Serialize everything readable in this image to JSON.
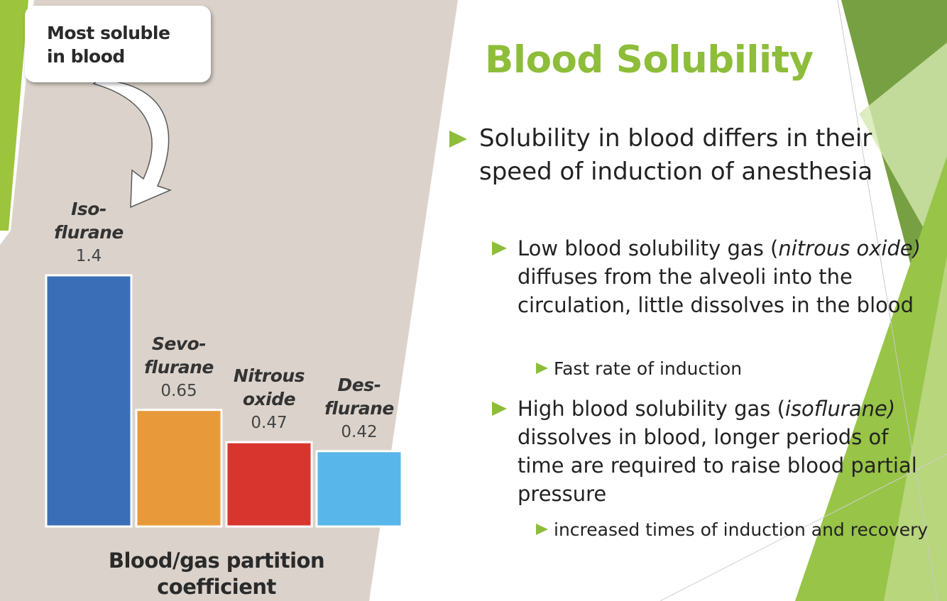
{
  "slide": {
    "title": "Blood Solubility",
    "bullets": [
      {
        "level": 1,
        "parts": [
          {
            "text": "Solubility in blood differs in their speed of induction of anesthesia"
          }
        ]
      },
      {
        "level": 2,
        "parts": [
          {
            "text": "Low blood solubility gas ("
          },
          {
            "text": "nitrous oxide)",
            "italic": true
          },
          {
            "text": " diffuses from the alveoli into the circulation, little dissolves in the blood"
          }
        ]
      },
      {
        "level": 3,
        "parts": [
          {
            "text": "Fast rate of induction"
          }
        ]
      },
      {
        "level": 2,
        "parts": [
          {
            "text": "High blood solubility gas ("
          },
          {
            "text": "isoflurane)",
            "italic": true
          },
          {
            "text": " dissolves in blood, longer periods of time are required to raise blood partial pressure"
          }
        ]
      },
      {
        "level": 3,
        "parts": [
          {
            "text": "increased times of induction and recovery"
          }
        ]
      }
    ]
  },
  "colors": {
    "accent": "#8ebd3a",
    "chart_background": "#dbd3cb",
    "bar_isoflurane": "#3a6fb8",
    "bar_sevoflurane": "#e8993a",
    "bar_nitrous_oxide": "#d9352f",
    "bar_desflurane": "#58b6ea"
  },
  "chart_data": {
    "type": "bar",
    "callout": "Most soluble\nin blood",
    "xlabel": "Blood/gas partition\ncoefficient",
    "ylim": [
      0,
      1.4
    ],
    "bars": [
      {
        "name_lines": [
          "Iso-",
          "flurane"
        ],
        "value": 1.4,
        "label": "1.4",
        "color": "#3a6fb8"
      },
      {
        "name_lines": [
          "Sevo-",
          "flurane"
        ],
        "value": 0.65,
        "label": "0.65",
        "color": "#e8993a"
      },
      {
        "name_lines": [
          "Nitrous",
          "oxide"
        ],
        "value": 0.47,
        "label": "0.47",
        "color": "#d9352f"
      },
      {
        "name_lines": [
          "Des-",
          "flurane"
        ],
        "value": 0.42,
        "label": "0.42",
        "color": "#58b6ea"
      }
    ]
  }
}
